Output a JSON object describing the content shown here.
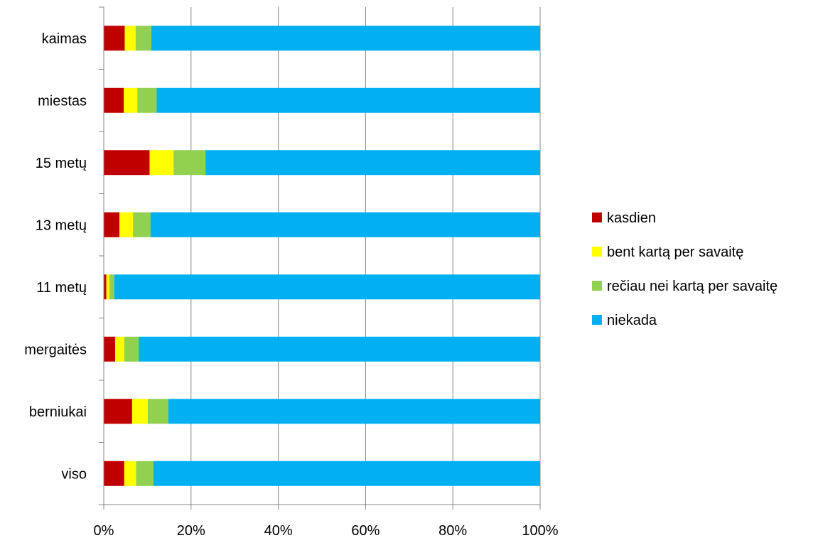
{
  "chart_data": {
    "type": "bar",
    "orientation": "horizontal",
    "stacked": "percent",
    "categories": [
      "kaimas",
      "miestas",
      "15 metų",
      "13 metų",
      "11 metų",
      "mergaitės",
      "berniukai",
      "viso"
    ],
    "series": [
      {
        "name": "kasdien",
        "color": "#C00000",
        "values": [
          4.8,
          4.6,
          10.5,
          3.6,
          0.6,
          2.6,
          6.5,
          4.7
        ]
      },
      {
        "name": "bent kartą per savaitę",
        "color": "#FFFF00",
        "values": [
          2.5,
          3.1,
          5.5,
          3.1,
          0.7,
          2.1,
          3.6,
          2.7
        ]
      },
      {
        "name": "rečiau nei kartą per savaitę",
        "color": "#92D050",
        "values": [
          3.6,
          4.4,
          7.3,
          4.0,
          1.1,
          3.3,
          4.7,
          4.0
        ]
      },
      {
        "name": "niekada",
        "color": "#00B0F0",
        "values": [
          89.1,
          87.9,
          76.7,
          89.3,
          97.6,
          92.0,
          85.2,
          88.6
        ]
      }
    ],
    "x_ticks": [
      "0%",
      "20%",
      "40%",
      "60%",
      "80%",
      "100%"
    ],
    "xlim": [
      0,
      100
    ],
    "grid": "vertical",
    "legend_position": "right"
  }
}
